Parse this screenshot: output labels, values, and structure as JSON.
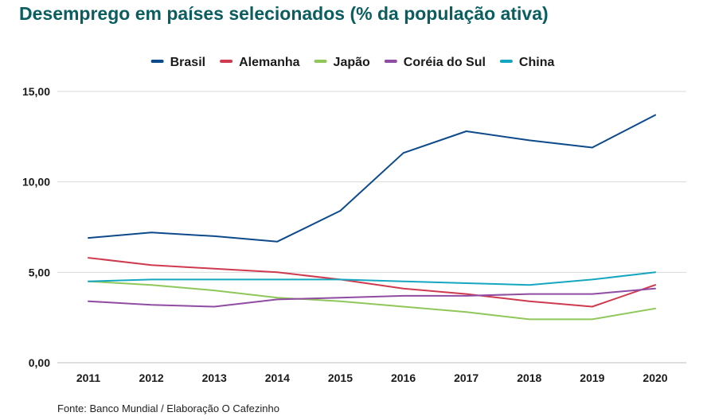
{
  "title": "Desemprego em países selecionados (% da população ativa)",
  "source": "Fonte: Banco Mundial / Elaboração O Cafezinho",
  "chart_data": {
    "type": "line",
    "title": "Desemprego em países selecionados (% da população ativa)",
    "xlabel": "",
    "ylabel": "",
    "x": [
      "2011",
      "2012",
      "2013",
      "2014",
      "2015",
      "2016",
      "2017",
      "2018",
      "2019",
      "2020"
    ],
    "y_ticks": [
      "0,00",
      "5,00",
      "10,00",
      "15,00"
    ],
    "ylim": [
      0,
      15
    ],
    "grid": true,
    "legend": "top-center",
    "series": [
      {
        "name": "Brasil",
        "color": "#0d4a8b",
        "values": [
          6.9,
          7.2,
          7.0,
          6.7,
          8.4,
          11.6,
          12.8,
          12.3,
          11.9,
          13.7
        ]
      },
      {
        "name": "Alemanha",
        "color": "#cf3a4e",
        "values": [
          5.8,
          5.4,
          5.2,
          5.0,
          4.6,
          4.1,
          3.8,
          3.4,
          3.1,
          4.3
        ]
      },
      {
        "name": "Japão",
        "color": "#8fc75a",
        "values": [
          4.5,
          4.3,
          4.0,
          3.6,
          3.4,
          3.1,
          2.8,
          2.4,
          2.4,
          3.0
        ]
      },
      {
        "name": "Coréia do Sul",
        "color": "#8f4ca2",
        "values": [
          3.4,
          3.2,
          3.1,
          3.5,
          3.6,
          3.7,
          3.7,
          3.8,
          3.8,
          4.1
        ]
      },
      {
        "name": "China",
        "color": "#16a7c0",
        "values": [
          4.5,
          4.6,
          4.6,
          4.6,
          4.6,
          4.5,
          4.4,
          4.3,
          4.6,
          5.0
        ]
      }
    ]
  }
}
